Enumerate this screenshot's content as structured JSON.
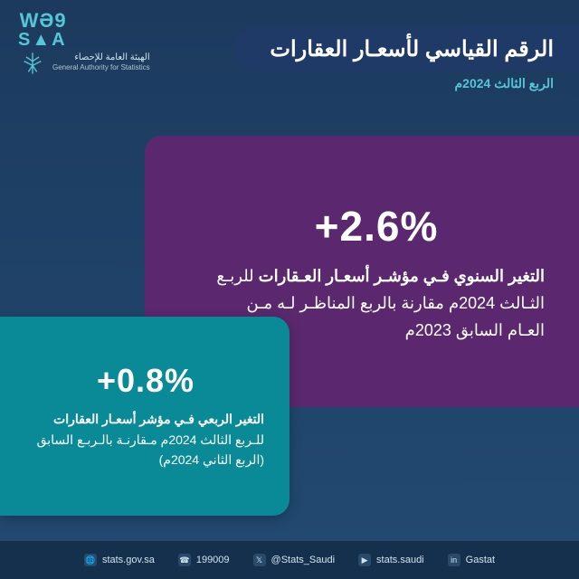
{
  "colors": {
    "bg_top": "#1c3a5e",
    "bg_bottom": "#234a72",
    "accent": "#56c6d6",
    "panel_purple": "#5b286f",
    "panel_teal": "#0a8a97",
    "title_pill": "#203a68",
    "footer_bg": "#15304c",
    "text_light": "#cfe6ee"
  },
  "logo": {
    "mark_line1": "WƏ9",
    "mark_line2": "S▲A",
    "org_ar": "الهيئة العامة للإحصاء",
    "org_en": "General Authority for Statistics"
  },
  "header": {
    "title": "الرقم القياسي لأسعـار العقارات",
    "subtitle": "الربع الثالث 2024م"
  },
  "stat_primary": {
    "value": "+2.6%",
    "desc_html": "<b>التغير السنوي فـي مؤشـر أسعـار العـقارات</b> للربـع الثـالث 2024م مقارنة بالربع المناظـر لـه مـن العـام السابق 2023م",
    "value_fontsize": 46,
    "desc_fontsize": 18,
    "bg": "#5b286f"
  },
  "stat_secondary": {
    "value": "+0.8%",
    "desc_html": "<b>التغير الربعي فـي مؤشر أسعـار العقارات</b> للـربع الثالث 2024م مـقارنـة بالـربـع السابق (الربع الثاني 2024م)",
    "value_fontsize": 36,
    "desc_fontsize": 14,
    "bg": "#0a8a97"
  },
  "footer": {
    "items": [
      {
        "icon": "🌐",
        "label": "stats.gov.sa"
      },
      {
        "icon": "☎",
        "label": "199009"
      },
      {
        "icon": "𝕏",
        "label": "@Stats_Saudi"
      },
      {
        "icon": "▶",
        "label": "stats.saudi"
      },
      {
        "icon": "in",
        "label": "Gastat"
      }
    ]
  }
}
